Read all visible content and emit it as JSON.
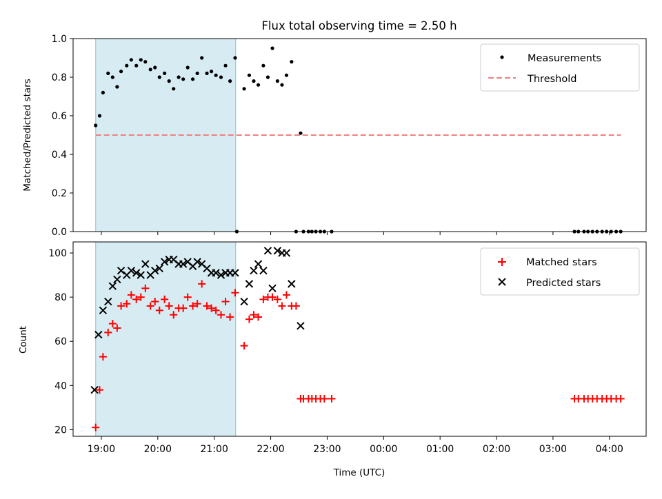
{
  "chart_data": [
    {
      "type": "scatter",
      "title": "Flux total observing time = 2.50 h",
      "xlabel": "",
      "ylabel": "Matched/Predicted stars",
      "xlim": [
        18.5,
        28.65
      ],
      "ylim": [
        0.0,
        1.0
      ],
      "yticks": [
        "0.0",
        "0.2",
        "0.4",
        "0.6",
        "0.8",
        "1.0"
      ],
      "shaded_span": [
        18.9,
        21.38
      ],
      "legend_placement": "top-right",
      "threshold": {
        "name": "Threshold",
        "value": 0.5,
        "x_range": [
          18.9,
          28.2
        ],
        "color": "#f08080"
      },
      "series": [
        {
          "name": "Measurements",
          "color": "#000000",
          "x": [
            18.9,
            18.97,
            19.03,
            19.12,
            19.2,
            19.28,
            19.35,
            19.45,
            19.53,
            19.62,
            19.7,
            19.78,
            19.87,
            19.95,
            20.03,
            20.12,
            20.2,
            20.28,
            20.37,
            20.45,
            20.53,
            20.62,
            20.7,
            20.78,
            20.87,
            20.95,
            21.03,
            21.12,
            21.2,
            21.28,
            21.37,
            21.4,
            21.53,
            21.62,
            21.7,
            21.78,
            21.87,
            21.95,
            22.03,
            22.12,
            22.2,
            22.28,
            22.37,
            22.45,
            22.53,
            22.58,
            22.67,
            22.73,
            22.8,
            22.88,
            22.95,
            23.08,
            27.38,
            27.45,
            27.55,
            27.62,
            27.7,
            27.78,
            27.87,
            27.95,
            28.03,
            28.12,
            28.2
          ],
          "y": [
            0.55,
            0.6,
            0.72,
            0.82,
            0.8,
            0.75,
            0.83,
            0.86,
            0.89,
            0.86,
            0.89,
            0.88,
            0.84,
            0.85,
            0.8,
            0.82,
            0.78,
            0.74,
            0.8,
            0.79,
            0.85,
            0.79,
            0.82,
            0.9,
            0.82,
            0.83,
            0.81,
            0.8,
            0.86,
            0.78,
            0.9,
            0.0,
            0.74,
            0.81,
            0.78,
            0.76,
            0.86,
            0.8,
            0.95,
            0.78,
            0.76,
            0.81,
            0.88,
            0.0,
            0.51,
            0.0,
            0.0,
            0.0,
            0.0,
            0.0,
            0.0,
            0.0,
            0.0,
            0.0,
            0.0,
            0.0,
            0.0,
            0.0,
            0.0,
            0.0,
            0.0,
            0.0,
            0.0
          ]
        }
      ]
    },
    {
      "type": "scatter",
      "title": "",
      "xlabel": "Time (UTC)",
      "ylabel": "Count",
      "xlim": [
        18.5,
        28.65
      ],
      "ylim": [
        17,
        105
      ],
      "yticks": [
        "20",
        "40",
        "60",
        "80",
        "100"
      ],
      "xticks": [
        {
          "value": 19,
          "label": "19:00"
        },
        {
          "value": 20,
          "label": "20:00"
        },
        {
          "value": 21,
          "label": "21:00"
        },
        {
          "value": 22,
          "label": "22:00"
        },
        {
          "value": 23,
          "label": "23:00"
        },
        {
          "value": 24,
          "label": "00:00"
        },
        {
          "value": 25,
          "label": "01:00"
        },
        {
          "value": 26,
          "label": "02:00"
        },
        {
          "value": 27,
          "label": "03:00"
        },
        {
          "value": 28,
          "label": "04:00"
        }
      ],
      "shaded_span": [
        18.9,
        21.38
      ],
      "legend_placement": "top-right",
      "series": [
        {
          "name": "Matched stars",
          "color": "#ff0000",
          "marker": "plus",
          "x": [
            18.9,
            18.97,
            19.03,
            19.12,
            19.2,
            19.28,
            19.35,
            19.45,
            19.53,
            19.62,
            19.7,
            19.78,
            19.87,
            19.95,
            20.03,
            20.12,
            20.2,
            20.28,
            20.37,
            20.45,
            20.53,
            20.62,
            20.7,
            20.78,
            20.87,
            20.95,
            21.03,
            21.12,
            21.2,
            21.28,
            21.37,
            21.53,
            21.62,
            21.7,
            21.78,
            21.87,
            21.95,
            22.03,
            22.12,
            22.2,
            22.28,
            22.37,
            22.45,
            22.53,
            22.58,
            22.67,
            22.73,
            22.8,
            22.88,
            22.95,
            23.08,
            27.38,
            27.45,
            27.55,
            27.62,
            27.7,
            27.78,
            27.87,
            27.95,
            28.03,
            28.12,
            28.2
          ],
          "y": [
            21,
            38,
            53,
            64,
            68,
            66,
            76,
            77,
            81,
            79,
            80,
            84,
            76,
            78,
            74,
            79,
            76,
            72,
            75,
            75,
            80,
            76,
            77,
            86,
            76,
            75,
            74,
            72,
            78,
            71,
            82,
            58,
            70,
            72,
            71,
            79,
            80,
            80,
            79,
            76,
            81,
            76,
            76,
            34,
            34,
            34,
            34,
            34,
            34,
            34,
            34,
            34,
            34,
            34,
            34,
            34,
            34,
            34,
            34,
            34,
            34,
            34
          ]
        },
        {
          "name": "Predicted stars",
          "color": "#000000",
          "marker": "x",
          "x": [
            18.88,
            18.95,
            19.03,
            19.12,
            19.2,
            19.28,
            19.35,
            19.45,
            19.53,
            19.62,
            19.7,
            19.78,
            19.87,
            19.95,
            20.03,
            20.12,
            20.2,
            20.28,
            20.37,
            20.45,
            20.53,
            20.62,
            20.7,
            20.78,
            20.87,
            20.95,
            21.03,
            21.12,
            21.2,
            21.28,
            21.37,
            21.53,
            21.62,
            21.7,
            21.78,
            21.87,
            21.95,
            22.03,
            22.12,
            22.2,
            22.28,
            22.37,
            22.53
          ],
          "y": [
            38,
            63,
            74,
            78,
            85,
            88,
            92,
            90,
            92,
            91,
            90,
            95,
            90,
            92,
            93,
            96,
            97,
            97,
            95,
            95,
            96,
            94,
            96,
            95,
            93,
            91,
            91,
            90,
            91,
            91,
            91,
            78,
            86,
            92,
            95,
            92,
            101,
            84,
            101,
            100,
            100,
            86,
            67
          ]
        }
      ]
    }
  ]
}
